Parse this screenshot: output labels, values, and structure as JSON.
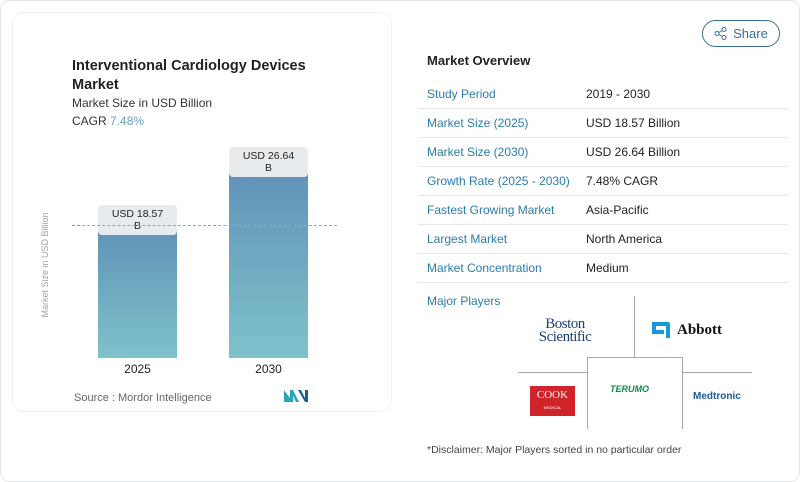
{
  "chart": {
    "title": "Interventional Cardiology Devices Market",
    "subtitle": "Market Size in USD Billion",
    "cagr_label": "CAGR",
    "cagr_value": "7.48%",
    "source": "Source :  Mordor Intelligence"
  },
  "chart_data": {
    "type": "bar",
    "title": "Interventional Cardiology Devices Market",
    "ylabel": "Market Size in USD Billion",
    "categories": [
      "2025",
      "2030"
    ],
    "values": [
      18.57,
      26.64
    ],
    "value_labels": [
      "USD 18.57 B",
      "USD 26.64 B"
    ],
    "ylim": [
      0,
      30
    ]
  },
  "share_label": "Share",
  "overview": {
    "title": "Market Overview",
    "rows": [
      {
        "k": "Study Period",
        "v": "2019 - 2030"
      },
      {
        "k": "Market Size (2025)",
        "v": "USD 18.57 Billion"
      },
      {
        "k": "Market Size (2030)",
        "v": "USD 26.64 Billion"
      },
      {
        "k": "Growth Rate (2025 - 2030)",
        "v": "7.48% CAGR"
      },
      {
        "k": "Fastest Growing Market",
        "v": "Asia-Pacific"
      },
      {
        "k": "Largest Market",
        "v": "North America"
      },
      {
        "k": "Market Concentration",
        "v": "Medium"
      }
    ]
  },
  "players": {
    "title": "Major Players",
    "names": [
      "Boston Scientific",
      "Abbott",
      "COOK MEDICAL",
      "TERUMO",
      "Medtronic"
    ],
    "disclaimer": "*Disclaimer: Major Players sorted in no particular order"
  },
  "colors": {
    "accent": "#2b7bb0",
    "bar_top": "#6092b8",
    "bar_bottom": "#7fc2cb"
  }
}
